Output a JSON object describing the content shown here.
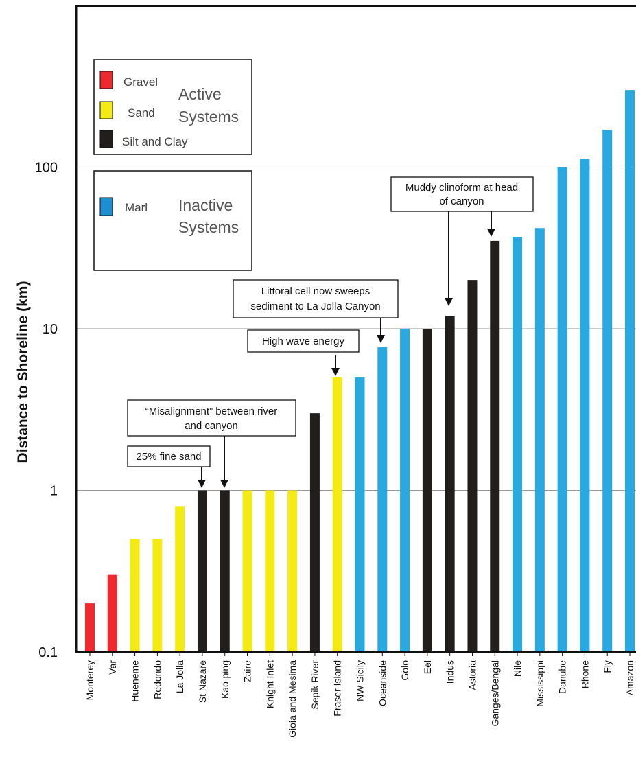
{
  "chart_data": {
    "type": "bar",
    "ylabel": "Distance to Shoreline (km)",
    "xlabel": "",
    "yscale": "log",
    "ylim": [
      0.1,
      1000
    ],
    "yticks": [
      0.1,
      1,
      10,
      100
    ],
    "ytick_labels": [
      "0.1",
      "1",
      "10",
      "100"
    ],
    "grid": "horizontal",
    "categories": [
      "Monterey",
      "Var",
      "Hueneme",
      "Redondo",
      "La Jolla",
      "St Nazare",
      "Kao-ping",
      "Zaire",
      "Knight Inlet",
      "Gioia and Mesima",
      "Sepik River",
      "Fraser Island",
      "NW Sicily",
      "Oceanside",
      "Golo",
      "Eel",
      "Indus",
      "Astoria",
      "Ganges/Bengal",
      "Nile",
      "Mississippi",
      "Danube",
      "Rhone",
      "Fly",
      "Amazon"
    ],
    "values": [
      0.2,
      0.3,
      0.5,
      0.5,
      0.8,
      1,
      1,
      1,
      1,
      1,
      3,
      5,
      5,
      7.7,
      10,
      10,
      12,
      20,
      35,
      37,
      42,
      100,
      113,
      170,
      300
    ],
    "classes": [
      "gravel",
      "gravel",
      "sand",
      "sand",
      "sand",
      "silt",
      "silt",
      "sand",
      "sand",
      "sand",
      "silt",
      "sand",
      "marl",
      "marl",
      "marl",
      "silt",
      "silt",
      "silt",
      "silt",
      "marl",
      "marl",
      "marl",
      "marl",
      "marl",
      "marl"
    ],
    "colors": {
      "gravel": "#ee2a2f",
      "sand": "#f4ea14",
      "silt": "#221e1c",
      "marl": "#29a9e0"
    },
    "legend": {
      "active": {
        "title": "Active Systems",
        "title_lines": [
          "Active",
          "Systems"
        ],
        "items": [
          {
            "key": "gravel",
            "label": "Gravel"
          },
          {
            "key": "sand",
            "label": "Sand"
          },
          {
            "key": "silt",
            "label": "Silt and Clay"
          }
        ]
      },
      "inactive": {
        "title": "Inactive Systems",
        "title_lines": [
          "Inactive",
          "Systems"
        ],
        "items": [
          {
            "key": "marl",
            "label": "Marl"
          }
        ]
      }
    },
    "annotations": [
      {
        "text": "Muddy clinoform at head of canyon",
        "lines": [
          "Muddy clinoform at head",
          "of canyon"
        ],
        "targets": [
          "Indus",
          "Ganges/Bengal"
        ]
      },
      {
        "text": "Littoral cell now sweeps sediment to La Jolla Canyon",
        "lines": [
          "Littoral cell now sweeps",
          "sediment to La Jolla Canyon"
        ],
        "targets": [
          "Oceanside"
        ]
      },
      {
        "text": "High wave energy",
        "lines": [
          "High wave energy"
        ],
        "targets": [
          "Fraser Island"
        ]
      },
      {
        "text": "“Misalignment” between river and canyon",
        "lines": [
          "“Misalignment” between river",
          "and canyon"
        ],
        "targets": [
          "Kao-ping"
        ]
      },
      {
        "text": "25% fine sand",
        "lines": [
          "25% fine sand"
        ],
        "targets": [
          "St Nazare"
        ]
      }
    ]
  }
}
